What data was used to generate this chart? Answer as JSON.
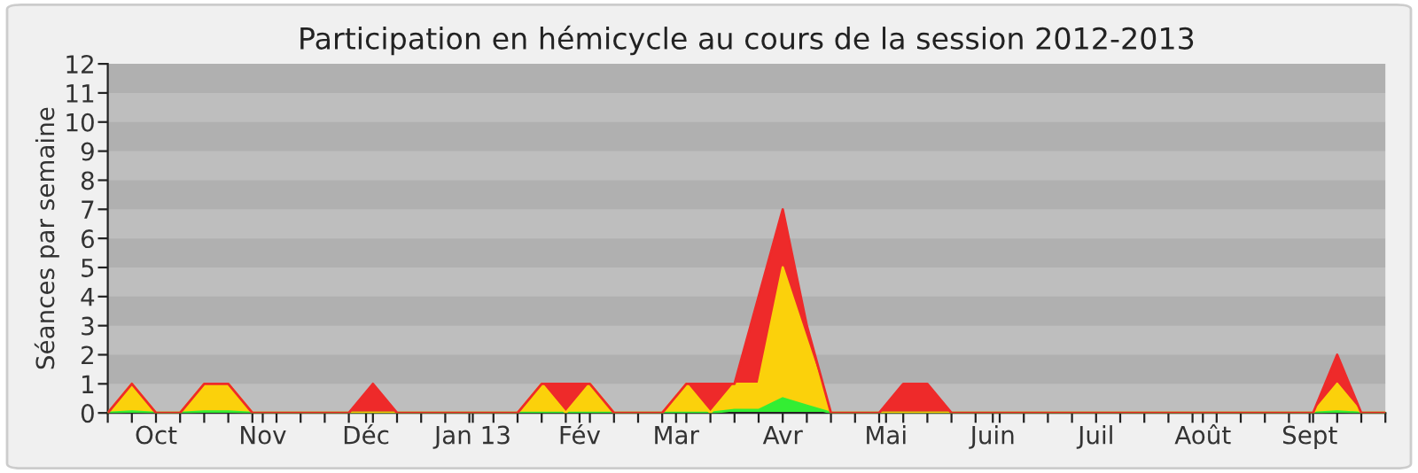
{
  "chart_data": {
    "type": "area",
    "stacked": true,
    "title": "Participation en hémicycle au cours de la session 2012-2013",
    "ylabel": "Séances par semaine",
    "x": [
      "2012-09-17",
      "2012-09-24",
      "2012-10-01",
      "2012-10-08",
      "2012-10-15",
      "2012-10-22",
      "2012-10-29",
      "2012-11-05",
      "2012-11-12",
      "2012-11-19",
      "2012-11-26",
      "2012-12-03",
      "2012-12-10",
      "2012-12-17",
      "2012-12-24",
      "2012-12-31",
      "2013-01-07",
      "2013-01-14",
      "2013-01-21",
      "2013-01-28",
      "2013-02-04",
      "2013-02-11",
      "2013-02-18",
      "2013-02-25",
      "2013-03-04",
      "2013-03-11",
      "2013-03-18",
      "2013-03-25",
      "2013-04-01",
      "2013-04-08",
      "2013-04-15",
      "2013-04-22",
      "2013-04-29",
      "2013-05-06",
      "2013-05-13",
      "2013-05-20",
      "2013-05-27",
      "2013-06-03",
      "2013-06-10",
      "2013-06-17",
      "2013-06-24",
      "2013-07-01",
      "2013-07-08",
      "2013-07-15",
      "2013-07-22",
      "2013-07-29",
      "2013-08-05",
      "2013-08-12",
      "2013-08-19",
      "2013-08-26",
      "2013-09-02",
      "2013-09-09",
      "2013-09-16",
      "2013-09-23"
    ],
    "series": [
      {
        "color": "#33ee33",
        "values": [
          0,
          0.05,
          0,
          0,
          0.05,
          0.05,
          0,
          0,
          0,
          0,
          0,
          0,
          0,
          0,
          0,
          0,
          0,
          0,
          0,
          0,
          0,
          0,
          0,
          0,
          0,
          0,
          0.1,
          0.1,
          0.5,
          0.25,
          0,
          0,
          0,
          0,
          0,
          0,
          0,
          0,
          0,
          0,
          0,
          0,
          0,
          0,
          0,
          0,
          0,
          0,
          0,
          0,
          0,
          0.05,
          0,
          0
        ]
      },
      {
        "color": "#fbd10b",
        "values": [
          0,
          0.95,
          0,
          0,
          0.95,
          0.95,
          0,
          0,
          0,
          0,
          0,
          0,
          0,
          0,
          0,
          0,
          0,
          0,
          1,
          0,
          1,
          0,
          0,
          0,
          1,
          0,
          0.9,
          0.9,
          4.5,
          2.25,
          0,
          0,
          0,
          0,
          0,
          0,
          0,
          0,
          0,
          0,
          0,
          0,
          0,
          0,
          0,
          0,
          0,
          0,
          0,
          0,
          0,
          0.95,
          0,
          0
        ]
      },
      {
        "color": "#ee2a2a",
        "values": [
          0,
          0,
          0,
          0,
          0,
          0,
          0,
          0,
          0,
          0,
          0,
          1,
          0,
          0,
          0,
          0,
          0,
          0,
          0,
          1,
          0,
          0,
          0,
          0,
          0,
          1,
          0,
          3,
          2,
          0.5,
          0,
          0,
          0,
          1,
          1,
          0,
          0,
          0,
          0,
          0,
          0,
          0,
          0,
          0,
          0,
          0,
          0,
          0,
          0,
          0,
          0,
          1,
          0,
          0
        ]
      }
    ],
    "xlim": [
      "2012-09-17",
      "2013-09-23"
    ],
    "xticks": [
      {
        "value": "2012-09-17",
        "label": null
      },
      {
        "value": "2012-09-24",
        "label": null
      },
      {
        "value": "2012-10-01",
        "label": "Oct"
      },
      {
        "value": "2012-10-08",
        "label": null
      },
      {
        "value": "2012-10-15",
        "label": null
      },
      {
        "value": "2012-10-22",
        "label": null
      },
      {
        "value": "2012-10-29",
        "label": null
      },
      {
        "value": "2012-11-01",
        "label": "Nov"
      },
      {
        "value": "2012-11-05",
        "label": null
      },
      {
        "value": "2012-11-12",
        "label": null
      },
      {
        "value": "2012-11-19",
        "label": null
      },
      {
        "value": "2012-11-26",
        "label": null
      },
      {
        "value": "2012-12-01",
        "label": "Déc"
      },
      {
        "value": "2012-12-03",
        "label": null
      },
      {
        "value": "2012-12-10",
        "label": null
      },
      {
        "value": "2012-12-17",
        "label": null
      },
      {
        "value": "2012-12-24",
        "label": null
      },
      {
        "value": "2012-12-31",
        "label": null
      },
      {
        "value": "2013-01-01",
        "label": "Jan 13"
      },
      {
        "value": "2013-01-07",
        "label": null
      },
      {
        "value": "2013-01-14",
        "label": null
      },
      {
        "value": "2013-01-21",
        "label": null
      },
      {
        "value": "2013-01-28",
        "label": null
      },
      {
        "value": "2013-02-01",
        "label": "Fév"
      },
      {
        "value": "2013-02-04",
        "label": null
      },
      {
        "value": "2013-02-11",
        "label": null
      },
      {
        "value": "2013-02-18",
        "label": null
      },
      {
        "value": "2013-02-25",
        "label": null
      },
      {
        "value": "2013-03-01",
        "label": "Mar"
      },
      {
        "value": "2013-03-04",
        "label": null
      },
      {
        "value": "2013-03-11",
        "label": null
      },
      {
        "value": "2013-03-18",
        "label": null
      },
      {
        "value": "2013-03-25",
        "label": null
      },
      {
        "value": "2013-04-01",
        "label": "Avr"
      },
      {
        "value": "2013-04-08",
        "label": null
      },
      {
        "value": "2013-04-15",
        "label": null
      },
      {
        "value": "2013-04-22",
        "label": null
      },
      {
        "value": "2013-04-29",
        "label": null
      },
      {
        "value": "2013-05-01",
        "label": "Mai"
      },
      {
        "value": "2013-05-06",
        "label": null
      },
      {
        "value": "2013-05-13",
        "label": null
      },
      {
        "value": "2013-05-20",
        "label": null
      },
      {
        "value": "2013-05-27",
        "label": null
      },
      {
        "value": "2013-06-01",
        "label": "Juin"
      },
      {
        "value": "2013-06-03",
        "label": null
      },
      {
        "value": "2013-06-10",
        "label": null
      },
      {
        "value": "2013-06-17",
        "label": null
      },
      {
        "value": "2013-06-24",
        "label": null
      },
      {
        "value": "2013-07-01",
        "label": "Juil"
      },
      {
        "value": "2013-07-08",
        "label": null
      },
      {
        "value": "2013-07-15",
        "label": null
      },
      {
        "value": "2013-07-22",
        "label": null
      },
      {
        "value": "2013-07-29",
        "label": null
      },
      {
        "value": "2013-08-01",
        "label": "Août"
      },
      {
        "value": "2013-08-05",
        "label": null
      },
      {
        "value": "2013-08-12",
        "label": null
      },
      {
        "value": "2013-08-19",
        "label": null
      },
      {
        "value": "2013-08-26",
        "label": null
      },
      {
        "value": "2013-09-01",
        "label": "Sept"
      },
      {
        "value": "2013-09-02",
        "label": null
      },
      {
        "value": "2013-09-09",
        "label": null
      },
      {
        "value": "2013-09-16",
        "label": null
      },
      {
        "value": "2013-09-23",
        "label": null
      }
    ],
    "ylim": [
      0,
      12
    ],
    "yticks": [
      0,
      1,
      2,
      3,
      4,
      5,
      6,
      7,
      8,
      9,
      10,
      11,
      12
    ],
    "bands": [
      {
        "axis": "y",
        "from": 1,
        "to": 2,
        "color": "#b0b0b0"
      },
      {
        "axis": "y",
        "from": 3,
        "to": 4,
        "color": "#b0b0b0"
      },
      {
        "axis": "y",
        "from": 5,
        "to": 6,
        "color": "#b0b0b0"
      },
      {
        "axis": "y",
        "from": 7,
        "to": 8,
        "color": "#b0b0b0"
      },
      {
        "axis": "y",
        "from": 9,
        "to": 10,
        "color": "#b0b0b0"
      },
      {
        "axis": "y",
        "from": 11,
        "to": 12,
        "color": "#b0b0b0"
      }
    ]
  }
}
